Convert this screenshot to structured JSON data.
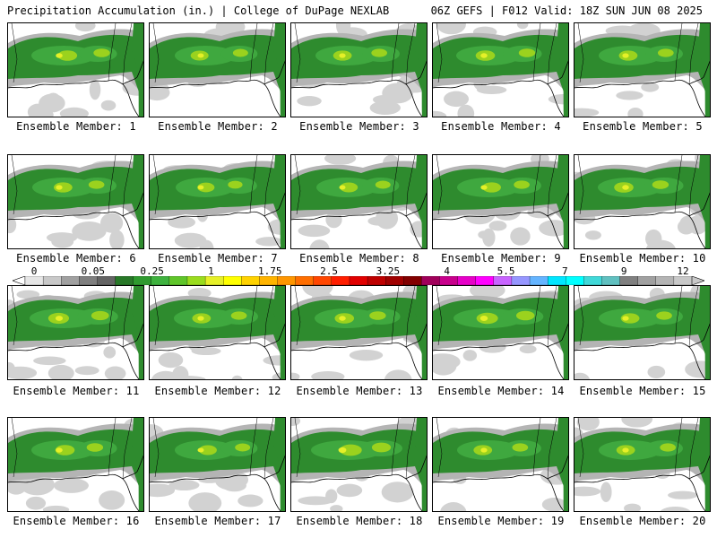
{
  "header": {
    "title": "Precipitation Accumulation (in.) | College of DuPage NEXLAB",
    "run_info": "06Z GEFS | F012 Valid: 18Z SUN JUN 08 2025"
  },
  "colorbar": {
    "labels": [
      "0",
      "0.05",
      "0.25",
      "1",
      "1.75",
      "2.5",
      "3.25",
      "4",
      "5.5",
      "7",
      "9",
      "12"
    ],
    "colors": [
      "#e6e6e6",
      "#c8c8c8",
      "#a0a0a0",
      "#7f7f7f",
      "#646464",
      "#287828",
      "#2f9a2f",
      "#3fb23f",
      "#5fc52a",
      "#9adc1e",
      "#e6f028",
      "#ffff00",
      "#ffd200",
      "#ffb400",
      "#ff9600",
      "#ff6e00",
      "#ff4600",
      "#ff1e00",
      "#e10000",
      "#be0000",
      "#a00000",
      "#820000",
      "#a0005a",
      "#c8008c",
      "#e600c8",
      "#ff00ff",
      "#c864ff",
      "#9696ff",
      "#64b4ff",
      "#00e6ff",
      "#00ffff",
      "#40d8d8",
      "#60c0c0",
      "#808080",
      "#a0a0a0",
      "#b4b4b4",
      "#c8c8c8"
    ]
  },
  "members": [
    {
      "caption": "Ensemble Member: 1",
      "intensity": 0.6
    },
    {
      "caption": "Ensemble Member: 2",
      "intensity": 0.5
    },
    {
      "caption": "Ensemble Member: 3",
      "intensity": 0.55
    },
    {
      "caption": "Ensemble Member: 4",
      "intensity": 0.6
    },
    {
      "caption": "Ensemble Member: 5",
      "intensity": 0.55
    },
    {
      "caption": "Ensemble Member: 6",
      "intensity": 0.55
    },
    {
      "caption": "Ensemble Member: 7",
      "intensity": 0.45
    },
    {
      "caption": "Ensemble Member: 8",
      "intensity": 0.5
    },
    {
      "caption": "Ensemble Member: 9",
      "intensity": 0.55
    },
    {
      "caption": "Ensemble Member: 10",
      "intensity": 0.6
    },
    {
      "caption": "Ensemble Member: 11",
      "intensity": 0.7
    },
    {
      "caption": "Ensemble Member: 12",
      "intensity": 0.55
    },
    {
      "caption": "Ensemble Member: 13",
      "intensity": 0.6
    },
    {
      "caption": "Ensemble Member: 14",
      "intensity": 0.75
    },
    {
      "caption": "Ensemble Member: 15",
      "intensity": 0.55
    },
    {
      "caption": "Ensemble Member: 16",
      "intensity": 0.6
    },
    {
      "caption": "Ensemble Member: 17",
      "intensity": 0.5
    },
    {
      "caption": "Ensemble Member: 18",
      "intensity": 0.8
    },
    {
      "caption": "Ensemble Member: 19",
      "intensity": 0.55
    },
    {
      "caption": "Ensemble Member: 20",
      "intensity": 0.55
    }
  ]
}
